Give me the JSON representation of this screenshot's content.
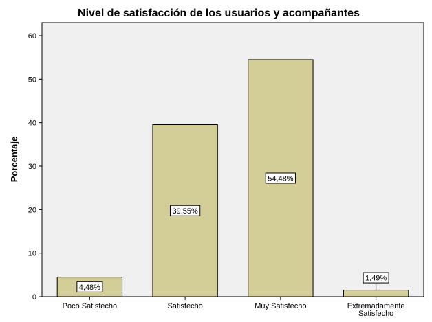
{
  "chart_data": {
    "type": "bar",
    "title": "Nivel de satisfacción de los usuarios y acompañantes",
    "xlabel": "",
    "ylabel": "Porcentaje",
    "categories": [
      [
        "Poco Satisfecho"
      ],
      [
        "Satisfecho"
      ],
      [
        "Muy Satisfecho"
      ],
      [
        "Extremadamente",
        "Satisfecho"
      ]
    ],
    "values": [
      4.48,
      39.55,
      54.48,
      1.49
    ],
    "data_labels": [
      "4,48%",
      "39,55%",
      "54,48%",
      "1,49%"
    ],
    "ylim": [
      0,
      63
    ],
    "yticks": [
      0,
      10,
      20,
      30,
      40,
      50,
      60
    ],
    "grid": false,
    "colors": {
      "bar_fill": "#d3ce97",
      "plot_bg": "#f0f0f0",
      "stroke": "#000000"
    }
  }
}
